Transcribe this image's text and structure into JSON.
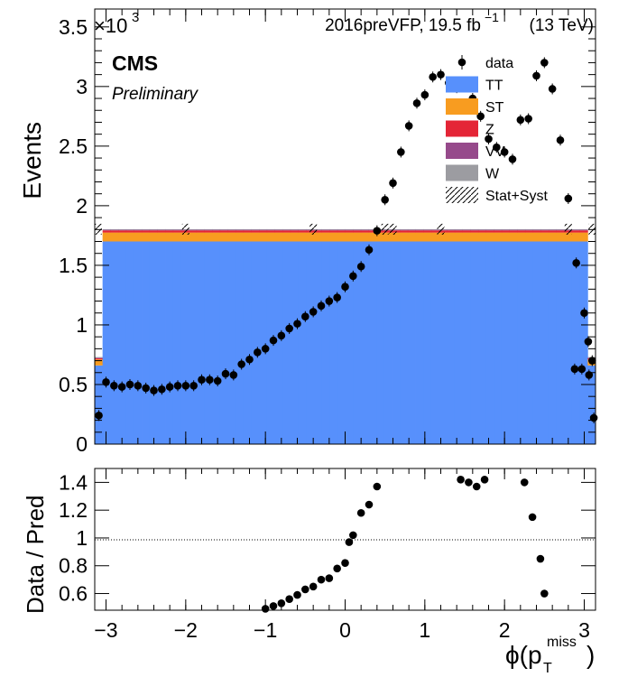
{
  "header": {
    "lumi_text": "2016preVFP, 19.5 fb",
    "lumi_sup": "−1",
    "energy_text": "(13 TeV)",
    "cms_label": "CMS",
    "prelim_label": "Preliminary",
    "y_exponent": "×10",
    "y_exponent_power": "3"
  },
  "chart_data": [
    {
      "type": "bar",
      "subtype": "stacked-histogram-with-data-points",
      "ylabel": "Events",
      "y_scale_factor": 1000,
      "xlim": [
        -3.1416,
        3.1416
      ],
      "ylim": [
        0,
        3.65
      ],
      "y_ticks": [
        "0",
        "0.5",
        "1",
        "1.5",
        "2",
        "2.5",
        "3",
        "3.5"
      ],
      "legend": [
        {
          "label": "data",
          "style": "marker",
          "color": "#000000"
        },
        {
          "label": "TT",
          "style": "fill",
          "color": "#5790fc"
        },
        {
          "label": "ST",
          "style": "fill",
          "color": "#f89c20"
        },
        {
          "label": "Z",
          "style": "fill",
          "color": "#e42536"
        },
        {
          "label": "VV",
          "style": "fill",
          "color": "#964a8b"
        },
        {
          "label": "W",
          "style": "fill",
          "color": "#9c9ca1"
        },
        {
          "label": "Stat+Syst",
          "style": "hatch",
          "color": "#000000"
        }
      ],
      "legend_position": "top-right",
      "n_bins": 64,
      "edge_bins": {
        "TT": 0.66,
        "ST": 0.05,
        "Z": 0.01,
        "VV": 0.005,
        "W": 0.005
      },
      "central_bins": {
        "TT": 1.7,
        "ST": 0.075,
        "Z": 0.018,
        "VV": 0.005,
        "W": 0.005
      },
      "data_points": [
        [
          -3.09,
          0.24
        ],
        [
          -3.0,
          0.52
        ],
        [
          -2.9,
          0.49
        ],
        [
          -2.8,
          0.48
        ],
        [
          -2.7,
          0.5
        ],
        [
          -2.6,
          0.49
        ],
        [
          -2.5,
          0.47
        ],
        [
          -2.4,
          0.45
        ],
        [
          -2.3,
          0.46
        ],
        [
          -2.2,
          0.48
        ],
        [
          -2.1,
          0.49
        ],
        [
          -2.0,
          0.49
        ],
        [
          -1.9,
          0.49
        ],
        [
          -1.8,
          0.54
        ],
        [
          -1.7,
          0.54
        ],
        [
          -1.6,
          0.53
        ],
        [
          -1.5,
          0.59
        ],
        [
          -1.4,
          0.58
        ],
        [
          -1.3,
          0.67
        ],
        [
          -1.2,
          0.71
        ],
        [
          -1.1,
          0.77
        ],
        [
          -1.0,
          0.8
        ],
        [
          -0.9,
          0.87
        ],
        [
          -0.8,
          0.91
        ],
        [
          -0.7,
          0.97
        ],
        [
          -0.6,
          1.01
        ],
        [
          -0.5,
          1.07
        ],
        [
          -0.4,
          1.11
        ],
        [
          -0.3,
          1.16
        ],
        [
          -0.2,
          1.2
        ],
        [
          -0.1,
          1.23
        ],
        [
          0.0,
          1.32
        ],
        [
          0.1,
          1.41
        ],
        [
          0.2,
          1.49
        ],
        [
          0.3,
          1.63
        ],
        [
          0.4,
          1.79
        ],
        [
          0.5,
          2.05
        ],
        [
          0.6,
          2.19
        ],
        [
          0.7,
          2.45
        ],
        [
          0.8,
          2.67
        ],
        [
          0.9,
          2.86
        ],
        [
          1.0,
          2.93
        ],
        [
          1.1,
          3.08
        ],
        [
          1.2,
          3.1
        ],
        [
          1.3,
          3.03
        ],
        [
          1.4,
          2.99
        ],
        [
          1.5,
          3.02
        ],
        [
          1.6,
          2.9
        ],
        [
          1.7,
          2.75
        ],
        [
          1.8,
          2.56
        ],
        [
          1.9,
          2.49
        ],
        [
          2.0,
          2.45
        ],
        [
          2.1,
          2.39
        ],
        [
          2.2,
          2.72
        ],
        [
          2.3,
          2.73
        ],
        [
          2.4,
          3.09
        ],
        [
          2.5,
          3.2
        ],
        [
          2.6,
          2.98
        ],
        [
          2.7,
          2.55
        ],
        [
          2.8,
          2.06
        ],
        [
          2.9,
          1.52
        ],
        [
          3.0,
          1.1
        ],
        [
          3.05,
          0.86
        ],
        [
          3.1,
          0.7
        ]
      ],
      "extra_data_points": [
        [
          2.88,
          0.63
        ],
        [
          2.97,
          0.63
        ],
        [
          3.06,
          0.58
        ],
        [
          3.12,
          0.22
        ]
      ],
      "unc_markers": [
        -3.1,
        -2.0,
        -0.4,
        0.5,
        0.6,
        1.2,
        2.8,
        3.1
      ]
    },
    {
      "type": "scatter",
      "ylabel": "Data / Pred",
      "xlabel": "ϕ(p⃗_T^miss)",
      "xlabel_main": "ϕ(p",
      "xlabel_sub": "T",
      "xlabel_sup": "miss",
      "xlabel_close": ")",
      "xlim": [
        -3.1416,
        3.1416
      ],
      "ylim": [
        0.48,
        1.5
      ],
      "x_ticks": [
        "−3",
        "−2",
        "−1",
        "0",
        "1",
        "2",
        "3"
      ],
      "y_ticks": [
        "0.6",
        "0.8",
        "1",
        "1.2",
        "1.4"
      ],
      "reference_line": 1,
      "points": [
        [
          -1.0,
          0.49
        ],
        [
          -0.9,
          0.51
        ],
        [
          -0.8,
          0.53
        ],
        [
          -0.7,
          0.56
        ],
        [
          -0.6,
          0.59
        ],
        [
          -0.5,
          0.63
        ],
        [
          -0.4,
          0.65
        ],
        [
          -0.3,
          0.7
        ],
        [
          -0.2,
          0.71
        ],
        [
          -0.1,
          0.78
        ],
        [
          0.0,
          0.82
        ],
        [
          0.05,
          0.97
        ],
        [
          0.1,
          1.02
        ],
        [
          0.2,
          1.18
        ],
        [
          0.3,
          1.24
        ],
        [
          0.4,
          1.37
        ],
        [
          1.45,
          1.42
        ],
        [
          1.55,
          1.4
        ],
        [
          1.65,
          1.37
        ],
        [
          1.75,
          1.42
        ],
        [
          2.25,
          1.4
        ],
        [
          2.35,
          1.15
        ],
        [
          2.45,
          0.85
        ],
        [
          2.5,
          0.6
        ]
      ]
    }
  ]
}
